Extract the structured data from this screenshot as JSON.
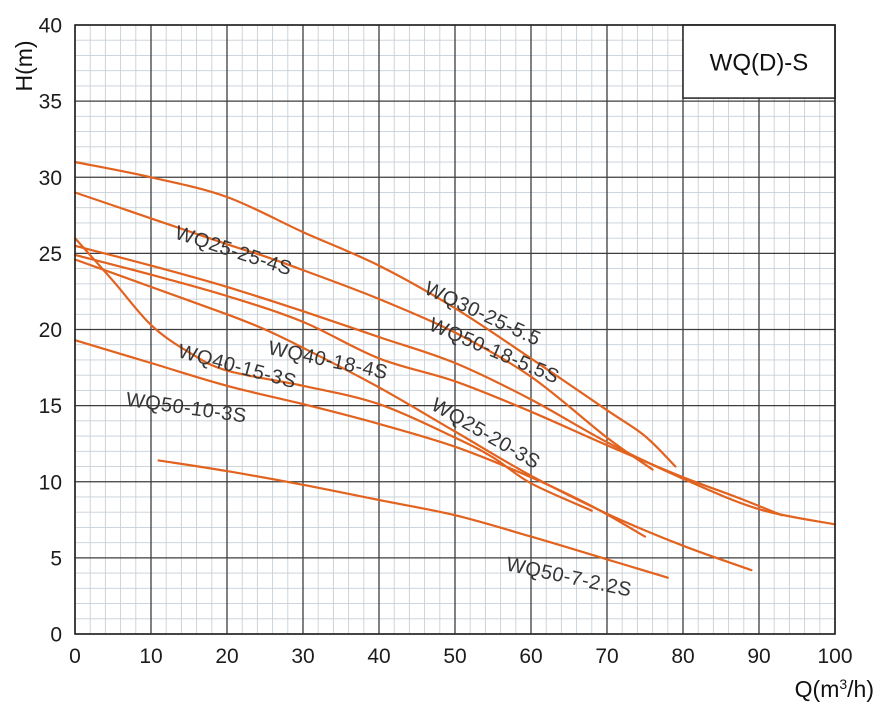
{
  "title_box": {
    "label": "WQ(D)-S"
  },
  "axes": {
    "y_label": "H(m)",
    "x_label_parts": {
      "prefix": "Q(m",
      "sup": "3",
      "suffix": "/h)"
    },
    "x_ticks": [
      0,
      10,
      20,
      30,
      40,
      50,
      60,
      70,
      80,
      90,
      100
    ],
    "y_ticks": [
      40,
      35,
      30,
      25,
      20,
      15,
      10,
      5,
      0
    ]
  },
  "colors": {
    "curve": "#E2631F",
    "grid_major": "#3d3d3d",
    "grid_minor": "#c7cfd8",
    "border": "#222222",
    "text": "#1c1c1c"
  },
  "chart_data": {
    "type": "line",
    "title": "WQ(D)-S",
    "xlabel": "Q(m³/h)",
    "ylabel": "H(m)",
    "xlim": [
      0,
      100
    ],
    "ylim": [
      0,
      40
    ],
    "x_major": 10,
    "x_minor": 2,
    "y_major": 5,
    "y_minor": 1,
    "grid": true,
    "legend_position": "none",
    "series": [
      {
        "name": "WQ30-25-5.5",
        "points": [
          [
            0,
            31
          ],
          [
            10,
            30
          ],
          [
            20,
            28.7
          ],
          [
            30,
            26.4
          ],
          [
            40,
            24.2
          ],
          [
            50,
            21.4
          ],
          [
            60,
            18.1
          ],
          [
            70,
            14.7
          ],
          [
            75,
            13
          ],
          [
            79,
            11
          ]
        ],
        "label": {
          "text": "WQ30-25-5.5",
          "q": 45.8,
          "h": 22.4,
          "angle": 25
        }
      },
      {
        "name": "WQ25-25-4S",
        "points": [
          [
            0,
            29
          ],
          [
            10,
            27.3
          ],
          [
            20,
            25.6
          ],
          [
            25,
            24.8
          ],
          [
            30,
            23.9
          ],
          [
            40,
            22
          ],
          [
            50,
            19.8
          ],
          [
            60,
            16.9
          ],
          [
            70,
            12.9
          ],
          [
            76,
            10.8
          ]
        ],
        "label": {
          "text": "WQ25-25-4S",
          "q": 13.0,
          "h": 26.0,
          "angle": 18
        }
      },
      {
        "name": "WQ50-18-5.5S",
        "points": [
          [
            0,
            25.5
          ],
          [
            10,
            24.2
          ],
          [
            20,
            22.8
          ],
          [
            30,
            21.2
          ],
          [
            40,
            19.5
          ],
          [
            50,
            17.8
          ],
          [
            60,
            15.4
          ],
          [
            70,
            12.6
          ],
          [
            80,
            10.2
          ],
          [
            90,
            8.2
          ],
          [
            100,
            7.2
          ]
        ],
        "label": {
          "text": "WQ50-18-5.5S",
          "q": 46.4,
          "h": 20.0,
          "angle": 23
        }
      },
      {
        "name": "WQ40-18-4S",
        "points": [
          [
            0,
            24.9
          ],
          [
            10,
            23.6
          ],
          [
            20,
            22.2
          ],
          [
            30,
            20.5
          ],
          [
            40,
            18.1
          ],
          [
            50,
            16.6
          ],
          [
            60,
            14.6
          ],
          [
            70,
            12.4
          ],
          [
            80,
            10.3
          ],
          [
            87,
            9
          ],
          [
            93,
            7.8
          ]
        ],
        "label": {
          "text": "WQ40-18-4S",
          "q": 25.3,
          "h": 18.4,
          "angle": 12
        }
      },
      {
        "name": "WQ40-15-3S",
        "points": [
          [
            0,
            26
          ],
          [
            5,
            23.2
          ],
          [
            10,
            20.3
          ],
          [
            15,
            18.5
          ],
          [
            20,
            17.3
          ],
          [
            30,
            16.3
          ],
          [
            40,
            15.1
          ],
          [
            50,
            12.9
          ],
          [
            55,
            11.6
          ],
          [
            60,
            9.9
          ],
          [
            68,
            8.1
          ]
        ],
        "label": {
          "text": "WQ40-15-3S",
          "q": 13.4,
          "h": 18.2,
          "angle": 15
        }
      },
      {
        "name": "WQ25-20-3S",
        "points": [
          [
            0,
            24.6
          ],
          [
            10,
            22.8
          ],
          [
            20,
            21
          ],
          [
            25,
            20
          ],
          [
            30,
            18.8
          ],
          [
            40,
            16.2
          ],
          [
            50,
            13.3
          ],
          [
            60,
            10.4
          ],
          [
            70,
            7.9
          ],
          [
            80,
            5.8
          ],
          [
            89,
            4.2
          ]
        ],
        "label": {
          "text": "WQ25-20-3S",
          "q": 46.7,
          "h": 14.8,
          "angle": 30
        }
      },
      {
        "name": "WQ50-10-3S",
        "points": [
          [
            0,
            19.3
          ],
          [
            10,
            17.8
          ],
          [
            20,
            16.3
          ],
          [
            30,
            15.1
          ],
          [
            40,
            13.8
          ],
          [
            50,
            12.3
          ],
          [
            60,
            10.3
          ],
          [
            68,
            8.4
          ],
          [
            75,
            6.4
          ]
        ],
        "label": {
          "text": "WQ50-10-3S",
          "q": 6.6,
          "h": 15.0,
          "angle": 8
        }
      },
      {
        "name": "WQ50-7-2.2S",
        "points": [
          [
            11,
            11.4
          ],
          [
            20,
            10.7
          ],
          [
            30,
            9.8
          ],
          [
            40,
            8.8
          ],
          [
            50,
            7.8
          ],
          [
            60,
            6.4
          ],
          [
            70,
            4.9
          ],
          [
            78,
            3.7
          ]
        ],
        "label": {
          "text": "WQ50-7-2.2S",
          "q": 56.6,
          "h": 4.2,
          "angle": 12
        }
      }
    ]
  }
}
